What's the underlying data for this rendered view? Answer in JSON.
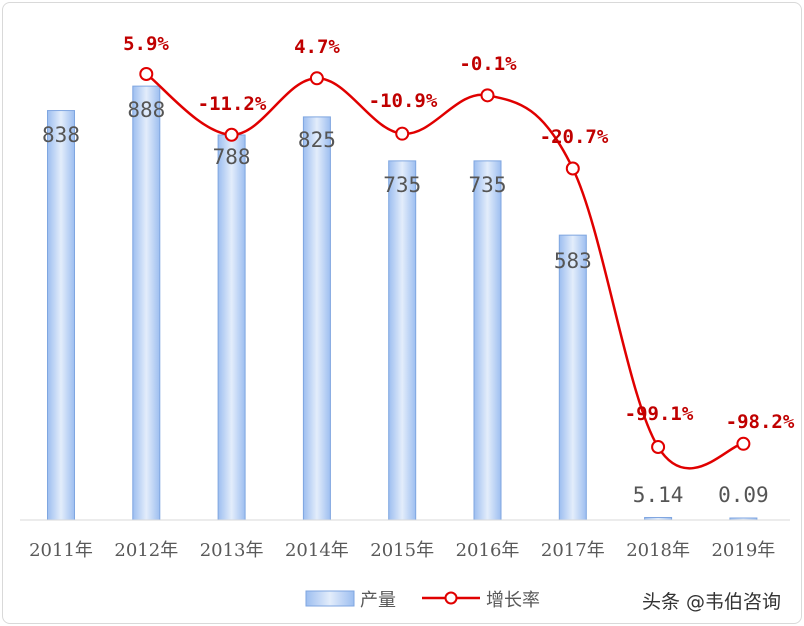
{
  "chart_data": {
    "type": "bar",
    "categories": [
      "2011年",
      "2012年",
      "2013年",
      "2014年",
      "2015年",
      "2016年",
      "2017年",
      "2018年",
      "2019年"
    ],
    "series": [
      {
        "name": "产量",
        "type": "bar",
        "values": [
          838,
          888,
          788,
          825,
          735,
          735,
          583,
          5.14,
          0.09
        ],
        "labels": [
          "838",
          "888",
          "788",
          "825",
          "735",
          "735",
          "583",
          "5.14",
          "0.09"
        ],
        "color": "#c5d9f1"
      },
      {
        "name": "增长率",
        "type": "line",
        "values": [
          null,
          5.9,
          -11.2,
          4.7,
          -10.9,
          -0.1,
          -20.7,
          -99.1,
          -98.2
        ],
        "labels": [
          "",
          "5.9%",
          "-11.2%",
          "4.7%",
          "-10.9%",
          "-0.1%",
          "-20.7%",
          "-99.1%",
          "-98.2%"
        ],
        "color": "#e00000"
      }
    ],
    "legend": "bottom",
    "grid": false
  },
  "watermark": {
    "text": "头条 @韦伯咨询"
  }
}
